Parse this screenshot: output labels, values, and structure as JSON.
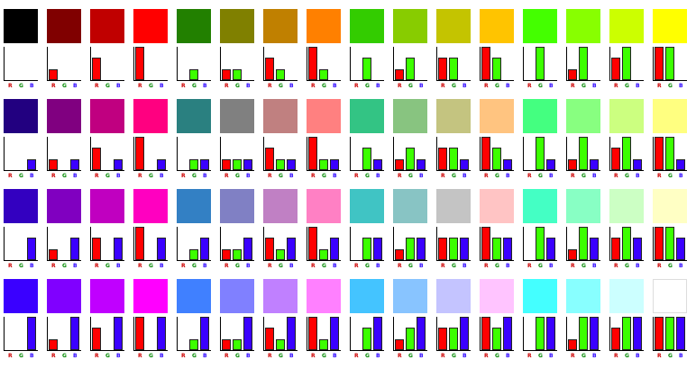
{
  "axis_labels": [
    "R",
    "G",
    "B"
  ],
  "label_colors": [
    "#cc0000",
    "#008800",
    "#2a00ff"
  ],
  "bar_colors": [
    "#ff0000",
    "#3cff00",
    "#3a00ff"
  ],
  "levels": [
    0,
    0.333,
    0.667,
    1
  ],
  "swatches": [
    [
      "#000000",
      "#800000",
      "#c00000",
      "#ff0000",
      "#228000",
      "#808000",
      "#c08000",
      "#ff8000",
      "#33cc00",
      "#88cc00",
      "#c4c400",
      "#ffc400",
      "#44ff00",
      "#88ff00",
      "#ccff00",
      "#ffff00"
    ],
    [
      "#220080",
      "#800080",
      "#c00080",
      "#ff0080",
      "#2a8080",
      "#808080",
      "#c08080",
      "#ff8080",
      "#33c484",
      "#88c480",
      "#c4c480",
      "#ffc480",
      "#44ff80",
      "#88ff80",
      "#ccff80",
      "#ffff80"
    ],
    [
      "#3300c0",
      "#8000c0",
      "#c000c0",
      "#ff00c0",
      "#3380c4",
      "#8080c4",
      "#c080c4",
      "#ff80c4",
      "#40c4c4",
      "#88c4c4",
      "#c4c4c4",
      "#ffc4c4",
      "#44ffc4",
      "#88ffc4",
      "#ccffc4",
      "#ffffc4"
    ],
    [
      "#3a00ff",
      "#8000ff",
      "#c000ff",
      "#ff00ff",
      "#4080ff",
      "#8080ff",
      "#c080ff",
      "#ff80ff",
      "#44c4ff",
      "#88c4ff",
      "#c4c4ff",
      "#ffc4ff",
      "#44ffff",
      "#88ffff",
      "#ccffff",
      "#ffffff"
    ]
  ],
  "chart_data": {
    "type": "bar",
    "categories": [
      "R",
      "G",
      "B"
    ],
    "ylim": [
      0,
      1
    ],
    "values_by_row": [
      [
        [
          0,
          0,
          0
        ],
        [
          0.333,
          0,
          0
        ],
        [
          0.667,
          0,
          0
        ],
        [
          1,
          0,
          0
        ],
        [
          0,
          0.333,
          0
        ],
        [
          0.333,
          0.333,
          0
        ],
        [
          0.667,
          0.333,
          0
        ],
        [
          1,
          0.333,
          0
        ],
        [
          0,
          0.667,
          0
        ],
        [
          0.333,
          0.667,
          0
        ],
        [
          0.667,
          0.667,
          0
        ],
        [
          1,
          0.667,
          0
        ],
        [
          0,
          1,
          0
        ],
        [
          0.333,
          1,
          0
        ],
        [
          0.667,
          1,
          0
        ],
        [
          1,
          1,
          0
        ]
      ],
      [
        [
          0,
          0,
          0.333
        ],
        [
          0.333,
          0,
          0.333
        ],
        [
          0.667,
          0,
          0.333
        ],
        [
          1,
          0,
          0.333
        ],
        [
          0,
          0.333,
          0.333
        ],
        [
          0.333,
          0.333,
          0.333
        ],
        [
          0.667,
          0.333,
          0.333
        ],
        [
          1,
          0.333,
          0.333
        ],
        [
          0,
          0.667,
          0.333
        ],
        [
          0.333,
          0.667,
          0.333
        ],
        [
          0.667,
          0.667,
          0.333
        ],
        [
          1,
          0.667,
          0.333
        ],
        [
          0,
          1,
          0.333
        ],
        [
          0.333,
          1,
          0.333
        ],
        [
          0.667,
          1,
          0.333
        ],
        [
          1,
          1,
          0.333
        ]
      ],
      [
        [
          0,
          0,
          0.667
        ],
        [
          0.333,
          0,
          0.667
        ],
        [
          0.667,
          0,
          0.667
        ],
        [
          1,
          0,
          0.667
        ],
        [
          0,
          0.333,
          0.667
        ],
        [
          0.333,
          0.333,
          0.667
        ],
        [
          0.667,
          0.333,
          0.667
        ],
        [
          1,
          0.333,
          0.667
        ],
        [
          0,
          0.667,
          0.667
        ],
        [
          0.333,
          0.667,
          0.667
        ],
        [
          0.667,
          0.667,
          0.667
        ],
        [
          1,
          0.667,
          0.667
        ],
        [
          0,
          1,
          0.667
        ],
        [
          0.333,
          1,
          0.667
        ],
        [
          0.667,
          1,
          0.667
        ],
        [
          1,
          1,
          0.667
        ]
      ],
      [
        [
          0,
          0,
          1
        ],
        [
          0.333,
          0,
          1
        ],
        [
          0.667,
          0,
          1
        ],
        [
          1,
          0,
          1
        ],
        [
          0,
          0.333,
          1
        ],
        [
          0.333,
          0.333,
          1
        ],
        [
          0.667,
          0.333,
          1
        ],
        [
          1,
          0.333,
          1
        ],
        [
          0,
          0.667,
          1
        ],
        [
          0.333,
          0.667,
          1
        ],
        [
          0.667,
          0.667,
          1
        ],
        [
          1,
          0.667,
          1
        ],
        [
          0,
          1,
          1
        ],
        [
          0.333,
          1,
          1
        ],
        [
          0.667,
          1,
          1
        ],
        [
          1,
          1,
          1
        ]
      ]
    ]
  }
}
